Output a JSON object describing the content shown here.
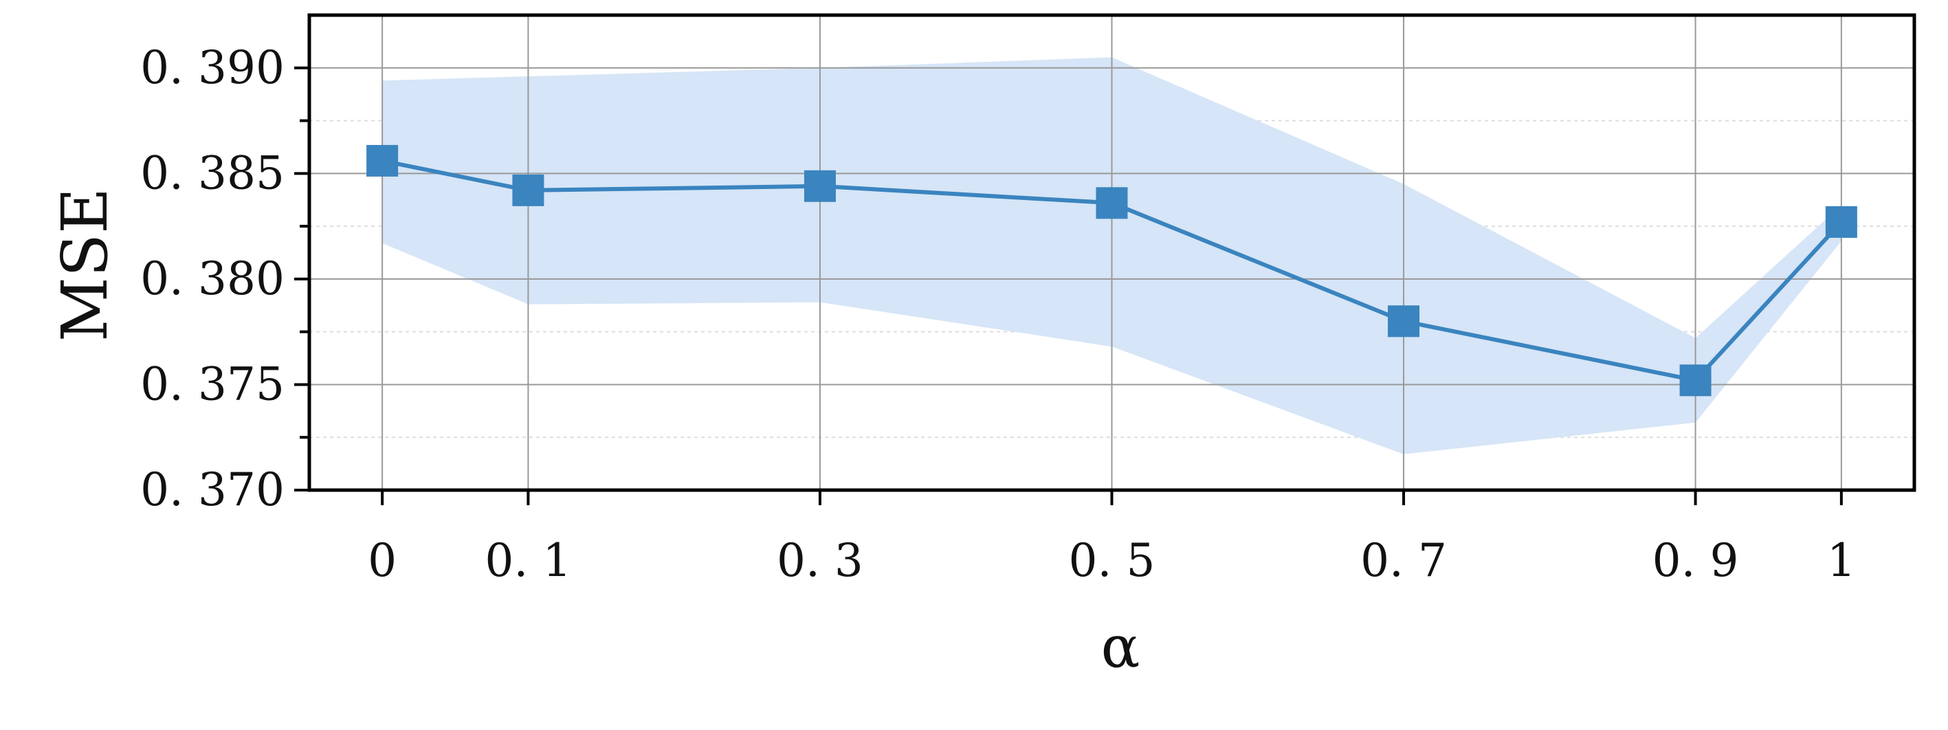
{
  "chart_data": {
    "type": "line",
    "xlabel": "α",
    "ylabel": "MSE",
    "x": [
      0,
      0.1,
      0.3,
      0.5,
      0.7,
      0.9,
      1
    ],
    "x_tick_labels": [
      "0",
      "0. 1",
      "0. 3",
      "0. 5",
      "0. 7",
      "0. 9",
      "1"
    ],
    "y_ticks": [
      0.37,
      0.375,
      0.38,
      0.385,
      0.39
    ],
    "y_tick_labels": [
      "0. 370",
      "0. 375",
      "0. 380",
      "0. 385",
      "0. 390"
    ],
    "xlim": [
      -0.05,
      1.05
    ],
    "ylim": [
      0.37,
      0.3925
    ],
    "grid": true,
    "series": [
      {
        "values": [
          0.3856,
          0.3842,
          0.3844,
          0.3836,
          0.378,
          0.3752,
          0.3827
        ],
        "upper": [
          0.3894,
          0.3896,
          0.39,
          0.3905,
          0.3845,
          0.3772,
          0.3835
        ],
        "lower": [
          0.3817,
          0.3788,
          0.3789,
          0.3768,
          0.3717,
          0.3732,
          0.3818
        ],
        "marker": "square"
      }
    ],
    "colors": {
      "line": "#3a84bf",
      "band": "#d6e5f7",
      "grid": "#999999",
      "minor_grid": "#dddddd",
      "axis": "#000000"
    }
  }
}
